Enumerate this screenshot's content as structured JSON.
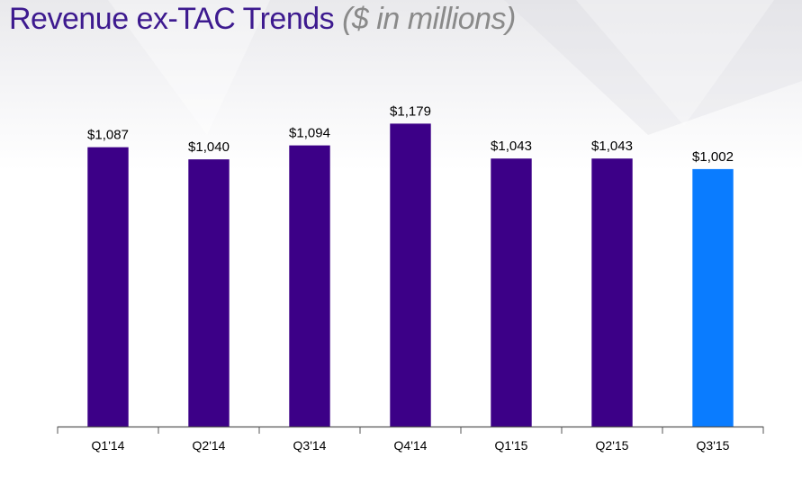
{
  "slide": {
    "title": "Revenue ex-TAC Trends",
    "subtitle": "($ in millions)"
  },
  "colors": {
    "title": "#3d1a8f",
    "subtitle": "#8a8a8a",
    "bar": "#3c0087",
    "bar_highlight": "#0a7cff",
    "axis": "#555555",
    "text": "#000000"
  },
  "chart_data": {
    "type": "bar",
    "title": "Revenue ex-TAC Trends",
    "subtitle": "($ in millions)",
    "categories": [
      "Q1'14",
      "Q2'14",
      "Q3'14",
      "Q4'14",
      "Q1'15",
      "Q2'15",
      "Q3'15"
    ],
    "values": [
      1087,
      1040,
      1094,
      1179,
      1043,
      1043,
      1002
    ],
    "data_labels": [
      "$1,087",
      "$1,040",
      "$1,094",
      "$1,179",
      "$1,043",
      "$1,043",
      "$1,002"
    ],
    "highlight_category": "Q3'15",
    "xlabel": "",
    "ylabel": "",
    "ylim": [
      0,
      1450
    ],
    "grid": false,
    "legend": "none"
  }
}
